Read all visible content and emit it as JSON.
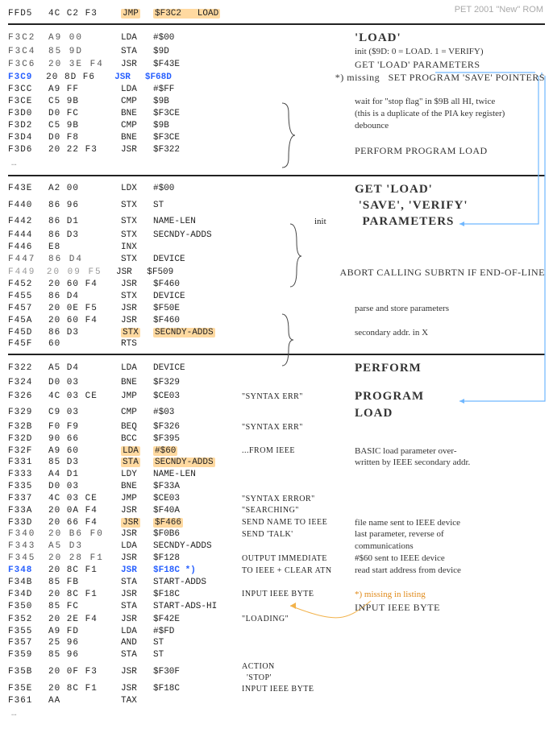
{
  "meta": {
    "title": "PET 2001 \"New\" ROM"
  },
  "colors": {
    "highlight": "#ffd9a0",
    "link": "#2860ff",
    "guide": "#6fb7ff",
    "orange": "#f2b24a"
  },
  "blocks": [
    {
      "type": "code",
      "rows": [
        {
          "addr": "FFD5",
          "hex": "4C C2 F3",
          "mn": "JMP",
          "op": "$F3C2   LOAD",
          "mn_hl": true,
          "op_hl": true
        }
      ]
    },
    {
      "type": "hr"
    },
    {
      "type": "code",
      "rows": [
        {
          "addr": "F3C2",
          "hex": "A9 00",
          "mn": "LDA",
          "op": "#$00",
          "dotted": true,
          "note": "'LOAD'",
          "note_class": "handbig"
        },
        {
          "addr": "F3C4",
          "hex": "85 9D",
          "mn": "STA",
          "op": "$9D",
          "dotted": true,
          "note": "init ($9D: 0 = LOAD. 1 = VERIFY)"
        },
        {
          "addr": "F3C6",
          "hex": "20 3E F4",
          "mn": "JSR",
          "op": "$F43E",
          "dotted": true,
          "note": "GET 'LOAD' PARAMETERS",
          "note_class": "hand"
        },
        {
          "addr": "F3C9",
          "hex": "20 8D F6",
          "mn": "JSR",
          "op": "$F68D",
          "addr_blue": true,
          "mn_blue": true,
          "op_blue": true,
          "note": "*) missing   SET PROGRAM 'SAVE' POINTERS",
          "note_class": "hand",
          "note_prefix_plain": "*) missing   "
        },
        {
          "addr": "F3CC",
          "hex": "A9 FF",
          "mn": "LDA",
          "op": "#$FF"
        },
        {
          "addr": "F3CE",
          "hex": "C5 9B",
          "mn": "CMP",
          "op": "$9B",
          "note": "wait for \"stop flag\" in $9B all HI, twice"
        },
        {
          "addr": "F3D0",
          "hex": "D0 FC",
          "mn": "BNE",
          "op": "$F3CE",
          "note": "(this is a duplicate of the PIA key register)"
        },
        {
          "addr": "F3D2",
          "hex": "C5 9B",
          "mn": "CMP",
          "op": "$9B",
          "note": "debounce"
        },
        {
          "addr": "F3D4",
          "hex": "D0 F8",
          "mn": "BNE",
          "op": "$F3CE"
        },
        {
          "addr": "F3D6",
          "hex": "20 22 F3",
          "mn": "JSR",
          "op": "$F322",
          "note": "PERFORM PROGRAM LOAD",
          "note_class": "hand"
        }
      ]
    },
    {
      "type": "ellipsis",
      "text": "…"
    },
    {
      "type": "hr"
    },
    {
      "type": "code",
      "rows": [
        {
          "addr": "F43E",
          "hex": "A2 00",
          "mn": "LDX",
          "op": "#$00",
          "note": "GET 'LOAD'",
          "note_class": "handbig"
        },
        {
          "addr": "F440",
          "hex": "86 96",
          "mn": "STX",
          "op": "ST",
          "note": " 'SAVE', 'VERIFY'",
          "note_class": "handbig"
        },
        {
          "addr": "F442",
          "hex": "86 D1",
          "mn": "STX",
          "op": "NAME-LEN",
          "note": "  PARAMETERS",
          "note_class": "handbig",
          "side": "init"
        },
        {
          "addr": "F444",
          "hex": "86 D3",
          "mn": "STX",
          "op": "SECNDY-ADDS"
        },
        {
          "addr": "F446",
          "hex": "E8",
          "mn": "INX",
          "op": ""
        },
        {
          "addr": "F447",
          "hex": "86 D4",
          "mn": "STX",
          "op": "DEVICE",
          "dotted": true
        },
        {
          "addr": "F449",
          "hex": "20 09 F5",
          "mn": "JSR",
          "op": "$F509",
          "dotted": true,
          "faded": true,
          "note": "ABORT CALLING SUBRTN IF END-OF-LINE",
          "note_class": "hand"
        },
        {
          "addr": "F452",
          "hex": "20 60 F4",
          "mn": "JSR",
          "op": "$F460"
        },
        {
          "addr": "F455",
          "hex": "86 D4",
          "mn": "STX",
          "op": "DEVICE"
        },
        {
          "addr": "F457",
          "hex": "20 0E F5",
          "mn": "JSR",
          "op": "$F50E",
          "note": "parse and store parameters"
        },
        {
          "addr": "F45A",
          "hex": "20 60 F4",
          "mn": "JSR",
          "op": "$F460"
        },
        {
          "addr": "F45D",
          "hex": "86 D3",
          "mn": "STX",
          "op": "SECNDY-ADDS",
          "mn_hl": true,
          "op_hl": true,
          "note": "secondary addr. in X"
        },
        {
          "addr": "F45F",
          "hex": "60",
          "mn": "RTS",
          "op": ""
        }
      ]
    },
    {
      "type": "hr"
    },
    {
      "type": "code",
      "rows": [
        {
          "addr": "F322",
          "hex": "A5 D4",
          "mn": "LDA",
          "op": "DEVICE",
          "note": "PERFORM",
          "note_class": "handbig"
        },
        {
          "addr": "F324",
          "hex": "D0 03",
          "mn": "BNE",
          "op": "$F329"
        },
        {
          "addr": "F326",
          "hex": "4C 03 CE",
          "mn": "JMP",
          "op": "$CE03",
          "note": "PROGRAM",
          "note_class": "handbig",
          "hand2": "\"SYNTAX ERR\""
        },
        {
          "addr": "F329",
          "hex": "C9 03",
          "mn": "CMP",
          "op": "#$03",
          "note": "LOAD",
          "note_class": "handbig"
        },
        {
          "addr": "F32B",
          "hex": "F0 F9",
          "mn": "BEQ",
          "op": "$F326",
          "hand2": "\"SYNTAX ERR\""
        },
        {
          "addr": "F32D",
          "hex": "90 66",
          "mn": "BCC",
          "op": "$F395"
        },
        {
          "addr": "F32F",
          "hex": "A9 60",
          "mn": "LDA",
          "op": "#$60",
          "mn_hl": true,
          "op_hl": true,
          "hand2": "...FROM IEEE",
          "note": "BASIC load parameter over-"
        },
        {
          "addr": "F331",
          "hex": "85 D3",
          "mn": "STA",
          "op": "SECNDY-ADDS",
          "mn_hl": true,
          "op_hl": true,
          "note": "written by IEEE secondary addr."
        },
        {
          "addr": "F333",
          "hex": "A4 D1",
          "mn": "LDY",
          "op": "NAME-LEN"
        },
        {
          "addr": "F335",
          "hex": "D0 03",
          "mn": "BNE",
          "op": "$F33A"
        },
        {
          "addr": "F337",
          "hex": "4C 03 CE",
          "mn": "JMP",
          "op": "$CE03",
          "hand2": "\"SYNTAX ERROR\""
        },
        {
          "addr": "F33A",
          "hex": "20 0A F4",
          "mn": "JSR",
          "op": "$F40A",
          "hand2": "\"SEARCHING\""
        },
        {
          "addr": "F33D",
          "hex": "20 66 F4",
          "mn": "JSR",
          "op": "$F466",
          "mn_hl": true,
          "op_hl": true,
          "hand2": "SEND NAME TO IEEE",
          "note": "file name sent to IEEE device"
        },
        {
          "addr": "F340",
          "hex": "20 B6 F0",
          "mn": "JSR",
          "op": "$F0B6",
          "dotted": true,
          "hand2": "SEND 'TALK'",
          "note": "last parameter, reverse of"
        },
        {
          "addr": "F343",
          "hex": "A5 D3",
          "mn": "LDA",
          "op": "SECNDY-ADDS",
          "dotted": true,
          "note": "communications"
        },
        {
          "addr": "F345",
          "hex": "20 28 F1",
          "mn": "JSR",
          "op": "$F128",
          "dotted": true,
          "hand2": "OUTPUT IMMEDIATE",
          "note": "#$60 sent to IEEE device"
        },
        {
          "addr": "F348",
          "hex": "20 8C F1",
          "mn": "JSR",
          "op": "$F18C *)",
          "addr_blue": true,
          "mn_blue": true,
          "op_blue": true,
          "hand2": "TO IEEE + CLEAR ATN",
          "note": "read start address from device"
        },
        {
          "addr": "F34B",
          "hex": "85 FB",
          "mn": "STA",
          "op": "START-ADDS"
        },
        {
          "addr": "F34D",
          "hex": "20 8C F1",
          "mn": "JSR",
          "op": "$F18C",
          "hand2": "INPUT IEEE BYTE",
          "note": "*) missing in listing",
          "note_orange": true
        },
        {
          "addr": "F350",
          "hex": "85 FC",
          "mn": "STA",
          "op": "START-ADS-HI",
          "hand2": "",
          "note": "INPUT IEEE BYTE",
          "note_class": "hand"
        },
        {
          "addr": "F352",
          "hex": "20 2E F4",
          "mn": "JSR",
          "op": "$F42E",
          "hand2": "\"LOADING\""
        },
        {
          "addr": "F355",
          "hex": "A9 FD",
          "mn": "LDA",
          "op": "#$FD"
        },
        {
          "addr": "F357",
          "hex": "25 96",
          "mn": "AND",
          "op": "ST"
        },
        {
          "addr": "F359",
          "hex": "85 96",
          "mn": "STA",
          "op": "ST"
        },
        {
          "addr": "F35B",
          "hex": "20 0F F3",
          "mn": "JSR",
          "op": "$F30F",
          "hand2": "ACTION\n  'STOP'"
        },
        {
          "addr": "F35E",
          "hex": "20 8C F1",
          "mn": "JSR",
          "op": "$F18C",
          "hand2": "INPUT IEEE BYTE"
        },
        {
          "addr": "F361",
          "hex": "AA",
          "mn": "TAX",
          "op": ""
        }
      ]
    },
    {
      "type": "ellipsis",
      "text": "…"
    }
  ]
}
